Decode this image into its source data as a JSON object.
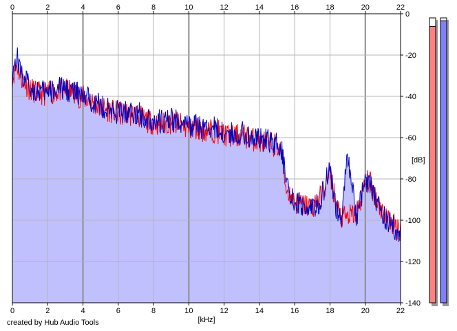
{
  "credit": "created by Hub Audio Tools",
  "chart_data": {
    "type": "area",
    "xlabel": "[kHz]",
    "ylabel": "[dB]",
    "xlim": [
      0,
      22
    ],
    "ylim": [
      -140,
      0
    ],
    "x_ticks": [
      0,
      2,
      4,
      6,
      8,
      10,
      12,
      14,
      16,
      18,
      20,
      22
    ],
    "y_ticks": [
      0,
      -20,
      -40,
      -60,
      -80,
      -100,
      -120,
      -140
    ],
    "grid": true,
    "fill_color": "#c0c0ff",
    "series": [
      {
        "color": "#ff0000",
        "x": [
          0,
          0.25,
          0.5,
          1,
          1.5,
          2,
          2.5,
          3,
          3.5,
          4,
          4.5,
          5,
          5.5,
          6,
          6.5,
          7,
          7.5,
          8,
          8.5,
          9,
          9.5,
          10,
          10.5,
          11,
          11.5,
          12,
          12.5,
          13,
          13.5,
          14,
          14.5,
          15,
          15.3,
          15.5,
          16,
          16.5,
          17,
          17.5,
          17.8,
          18,
          18.3,
          18.6,
          19,
          19.5,
          20,
          20.2,
          20.5,
          21,
          21.5,
          22
        ],
        "y": [
          -30,
          -24,
          -30,
          -36,
          -38,
          -38,
          -37,
          -36,
          -38,
          -40,
          -42,
          -45,
          -46,
          -48,
          -48,
          -48,
          -51,
          -52,
          -53,
          -52,
          -53,
          -55,
          -55,
          -56,
          -56,
          -58,
          -59,
          -58,
          -60,
          -61,
          -62,
          -63,
          -68,
          -84,
          -90,
          -92,
          -93,
          -88,
          -82,
          -76,
          -90,
          -98,
          -98,
          -96,
          -82,
          -80,
          -86,
          -96,
          -101,
          -104
        ]
      },
      {
        "color": "#0000c0",
        "x": [
          0,
          0.25,
          0.5,
          1,
          1.5,
          2,
          2.5,
          3,
          3.5,
          4,
          4.5,
          5,
          5.5,
          6,
          6.5,
          7,
          7.5,
          8,
          8.5,
          9,
          9.5,
          10,
          10.5,
          11,
          11.5,
          12,
          12.5,
          13,
          13.5,
          14,
          14.5,
          15,
          15.3,
          15.5,
          16,
          16.5,
          17,
          17.5,
          17.8,
          18,
          18.3,
          18.6,
          19,
          19.5,
          20,
          20.2,
          20.5,
          21,
          21.5,
          22
        ],
        "y": [
          -28,
          -20,
          -28,
          -35,
          -37,
          -38,
          -36,
          -36,
          -37,
          -40,
          -41,
          -44,
          -46,
          -47,
          -47,
          -47,
          -50,
          -51,
          -52,
          -51,
          -52,
          -54,
          -54,
          -55,
          -55,
          -57,
          -58,
          -57,
          -59,
          -60,
          -61,
          -62,
          -66,
          -83,
          -91,
          -92,
          -94,
          -89,
          -80,
          -74,
          -92,
          -100,
          -68,
          -97,
          -81,
          -79,
          -87,
          -97,
          -102,
          -105
        ]
      }
    ],
    "level_meters": [
      {
        "color": "#ff8080",
        "level": 0.97
      },
      {
        "color": "#8080ff",
        "level": 0.99
      }
    ]
  }
}
